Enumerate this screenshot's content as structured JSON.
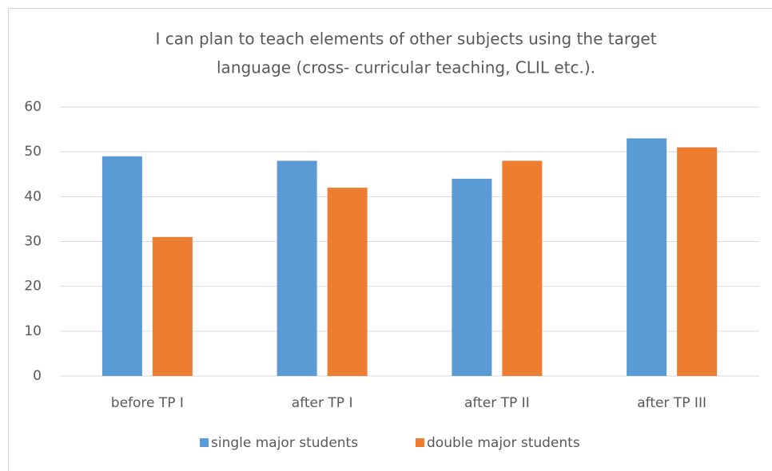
{
  "chart_data": {
    "type": "bar",
    "title": [
      "I can plan to teach elements of other subjects using the target",
      "language (cross- curricular teaching, CLIL  etc.)."
    ],
    "categories": [
      "before TP I",
      "after TP I",
      "after TP II",
      "after TP III"
    ],
    "series": [
      {
        "name": "single major students",
        "color": "#5b9bd5",
        "values": [
          49,
          48,
          44,
          53
        ]
      },
      {
        "name": "double major students",
        "color": "#ed7d31",
        "values": [
          31,
          42,
          48,
          51
        ]
      }
    ],
    "ylim": [
      0,
      60
    ],
    "yticks": [
      0,
      10,
      20,
      30,
      40,
      50,
      60
    ],
    "grid": true,
    "legend": "bottom"
  }
}
